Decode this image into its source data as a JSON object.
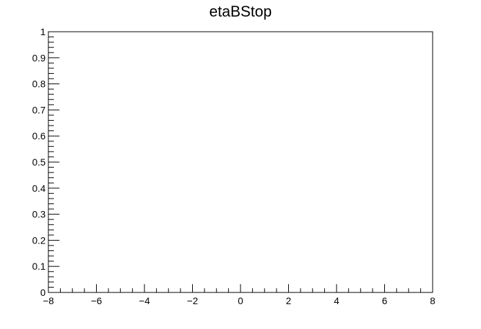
{
  "chart_data": {
    "type": "line",
    "title": "etaBStop",
    "xlabel": "",
    "ylabel": "",
    "xlim": [
      -8,
      8
    ],
    "ylim": [
      0,
      1
    ],
    "x_ticks": [
      -8,
      -6,
      -4,
      -2,
      0,
      2,
      4,
      6,
      8
    ],
    "x_tick_labels": [
      "−8",
      "−6",
      "−4",
      "−2",
      "0",
      "2",
      "4",
      "6",
      "8"
    ],
    "y_ticks": [
      0,
      0.1,
      0.2,
      0.3,
      0.4,
      0.5,
      0.6,
      0.7,
      0.8,
      0.9,
      1
    ],
    "y_tick_labels": [
      "0",
      "0.1",
      "0.2",
      "0.3",
      "0.4",
      "0.5",
      "0.6",
      "0.7",
      "0.8",
      "0.9",
      "1"
    ],
    "x_minor_per_major": 4,
    "y_minor_per_major": 5,
    "grid": false,
    "legend": "none",
    "series": [],
    "colors": {
      "axis": "#000000",
      "background": "#ffffff"
    }
  }
}
